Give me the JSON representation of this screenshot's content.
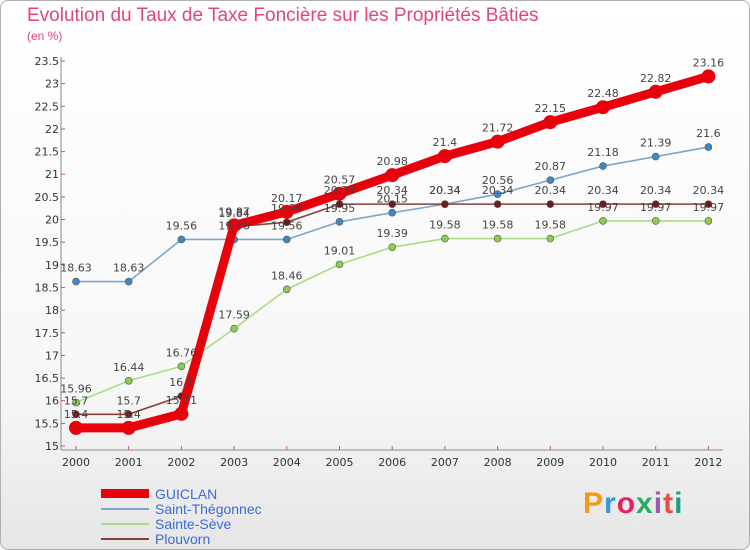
{
  "header": {
    "title": "Evolution du Taux de Taxe Foncière sur les Propriétés Bâties",
    "unit": "(en %)"
  },
  "logo": {
    "text": "Proxiti",
    "colors": [
      "#f39c12",
      "#3498db",
      "#e91e63",
      "#27ae60",
      "#9b59b6",
      "#e74c3c",
      "#16a085"
    ]
  },
  "chart_data": {
    "type": "line",
    "title": "Evolution du Taux de Taxe Foncière sur les Propriétés Bâties",
    "ylabel": "(en %)",
    "xlabel": "",
    "categories": [
      "2000",
      "2001",
      "2002",
      "2003",
      "2004",
      "2005",
      "2006",
      "2007",
      "2008",
      "2009",
      "2010",
      "2011",
      "2012"
    ],
    "ylim": [
      15,
      23.5
    ],
    "yticks": [
      "15",
      "15.5",
      "16",
      "16.5",
      "17",
      "17.5",
      "18",
      "18.5",
      "19",
      "19.5",
      "20",
      "20.5",
      "21",
      "21.5",
      "22",
      "22.5",
      "23",
      "23.5"
    ],
    "grid": false,
    "legend_position": "bottom-left",
    "series": [
      {
        "name": "Saint-Thégonnec",
        "color": "#7aa5cc",
        "marker": "#3d88c7",
        "values": [
          18.63,
          18.63,
          19.56,
          19.56,
          19.56,
          19.95,
          20.15,
          20.34,
          20.56,
          20.87,
          21.18,
          21.39,
          21.6
        ],
        "labels": [
          "18.63",
          "18.63",
          "19.56",
          "19.56",
          "19.56",
          "19.95",
          "20.15",
          "20.34",
          "20.56",
          "20.87",
          "21.18",
          "21.39",
          "21.6"
        ]
      },
      {
        "name": "Sainte-Sève",
        "color": "#a9dd86",
        "marker": "#8bcc52",
        "values": [
          15.96,
          16.44,
          16.76,
          17.59,
          18.46,
          19.01,
          19.39,
          19.58,
          19.58,
          19.58,
          19.97,
          19.97,
          19.97
        ],
        "labels": [
          "15.96",
          "16.44",
          "16.76",
          "17.59",
          "18.46",
          "19.01",
          "19.39",
          "19.58",
          "19.58",
          "19.58",
          "19.97",
          "19.97",
          "19.97"
        ]
      },
      {
        "name": "Plouvorn",
        "color": "#8a3d3d",
        "marker": "#6b1c1c",
        "values": [
          15.7,
          15.7,
          16.1,
          19.84,
          19.94,
          20.34,
          20.34,
          20.34,
          20.34,
          20.34,
          20.34,
          20.34,
          20.34
        ],
        "labels": [
          "15.7",
          "15.7",
          "16.1",
          "19.84",
          "19.94",
          "20.34",
          "20.34",
          "20.34",
          "20.34",
          "20.34",
          "20.34",
          "20.34",
          "20.34"
        ]
      },
      {
        "name": "GUICLAN",
        "color": "#e8000b",
        "marker": "#e8000b",
        "thick": true,
        "values": [
          15.4,
          15.4,
          15.71,
          19.87,
          20.17,
          20.57,
          20.98,
          21.4,
          21.72,
          22.15,
          22.48,
          22.82,
          23.16
        ],
        "labels": [
          "15.4",
          "15.4",
          "15.71",
          "19.87",
          "20.17",
          "20.57",
          "20.98",
          "21.4",
          "21.72",
          "22.15",
          "22.48",
          "22.82",
          "23.16"
        ]
      }
    ],
    "legend": [
      {
        "name": "GUICLAN",
        "color": "#e8000b",
        "thick": true
      },
      {
        "name": "Saint-Thégonnec",
        "color": "#7aa5cc"
      },
      {
        "name": "Sainte-Sève",
        "color": "#a9dd86"
      },
      {
        "name": "Plouvorn",
        "color": "#8a3d3d"
      }
    ]
  }
}
